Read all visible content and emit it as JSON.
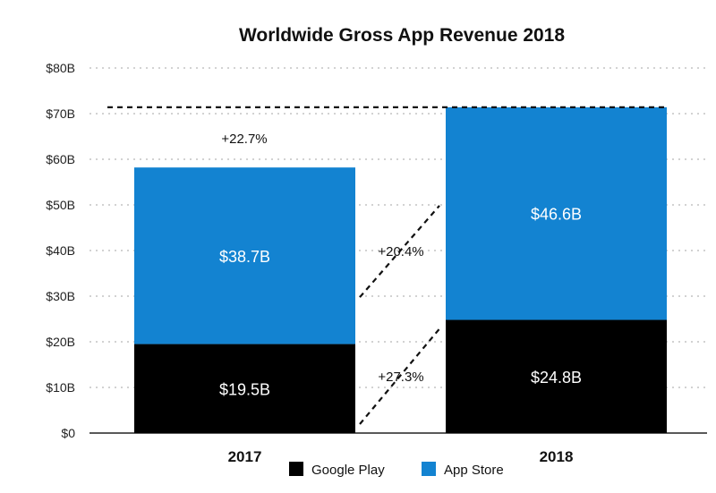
{
  "chart_data": {
    "type": "bar",
    "stacked": true,
    "title": "Worldwide Gross App Revenue 2018",
    "categories": [
      "2017",
      "2018"
    ],
    "series": [
      {
        "name": "Google Play",
        "values": [
          19.5,
          24.8
        ],
        "labels": [
          "$19.5B",
          "$24.8B"
        ],
        "color": "#000000"
      },
      {
        "name": "App Store",
        "values": [
          38.7,
          46.6
        ],
        "labels": [
          "$38.7B",
          "$46.6B"
        ],
        "color": "#1383d1"
      }
    ],
    "ylim": [
      0,
      80
    ],
    "yticks": [
      0,
      10,
      20,
      30,
      40,
      50,
      60,
      70,
      80
    ],
    "ytick_labels": [
      "$0",
      "$10B",
      "$20B",
      "$30B",
      "$40B",
      "$50B",
      "$60B",
      "$70B",
      "$80B"
    ],
    "grid": true,
    "legend_position": "bottom",
    "annotations": {
      "total_growth": "+22.7%",
      "app_store_growth": "+20.4%",
      "google_play_growth": "+27.3%"
    }
  }
}
